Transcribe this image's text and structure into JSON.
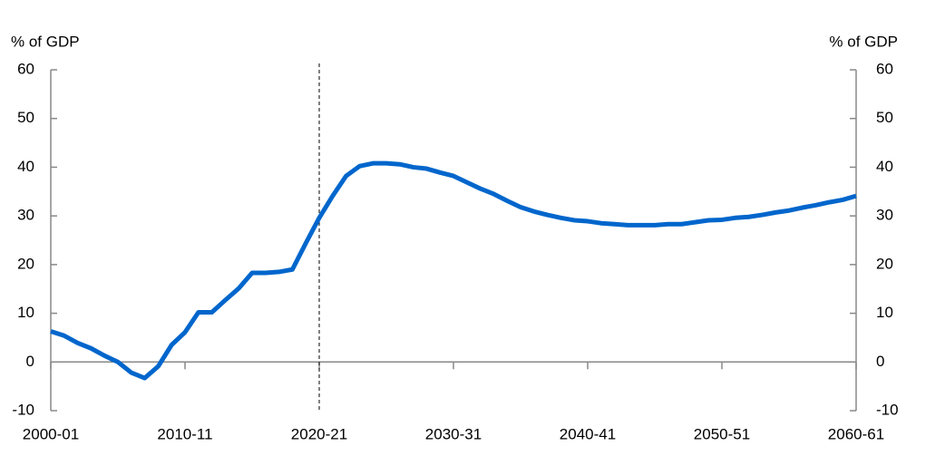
{
  "chart_data": {
    "type": "line",
    "y_label": "% of GDP",
    "y2_label": "% of GDP",
    "categories": [
      "2000-01",
      null,
      null,
      null,
      null,
      null,
      null,
      null,
      null,
      null,
      "2010-11",
      null,
      null,
      null,
      null,
      null,
      null,
      null,
      null,
      null,
      "2020-21",
      null,
      null,
      null,
      null,
      null,
      null,
      null,
      null,
      null,
      "2030-31",
      null,
      null,
      null,
      null,
      null,
      null,
      null,
      null,
      null,
      "2040-41",
      null,
      null,
      null,
      null,
      null,
      null,
      null,
      null,
      null,
      "2050-51",
      null,
      null,
      null,
      null,
      null,
      null,
      null,
      null,
      null,
      "2060-61"
    ],
    "series": [
      {
        "color": "#0066cc",
        "values": [
          6.3,
          5.4,
          3.9,
          2.8,
          1.3,
          0,
          -2.2,
          -3.3,
          -0.9,
          3.5,
          6.1,
          10.2,
          10.2,
          12.7,
          15.1,
          18.3,
          18.3,
          18.5,
          19.0,
          24.4,
          29.6,
          34.1,
          38.2,
          40.2,
          40.8,
          40.8,
          40.6,
          40.0,
          39.7,
          38.9,
          38.2,
          36.9,
          35.6,
          34.5,
          33.1,
          31.8,
          30.9,
          30.2,
          29.6,
          29.1,
          28.9,
          28.5,
          28.3,
          28.1,
          28.1,
          28.1,
          28.3,
          28.3,
          28.7,
          29.1,
          29.2,
          29.6,
          29.8,
          30.2,
          30.7,
          31.1,
          31.7,
          32.2,
          32.8,
          33.3,
          34.1
        ]
      }
    ],
    "marker_x": "2020-21",
    "ylim": [
      -10,
      60
    ],
    "yticks": [
      -10,
      0,
      10,
      20,
      30,
      40,
      50,
      60
    ],
    "y2lim": [
      -10,
      60
    ],
    "y2ticks": [
      -10,
      0,
      10,
      20,
      30,
      40,
      50,
      60
    ]
  }
}
